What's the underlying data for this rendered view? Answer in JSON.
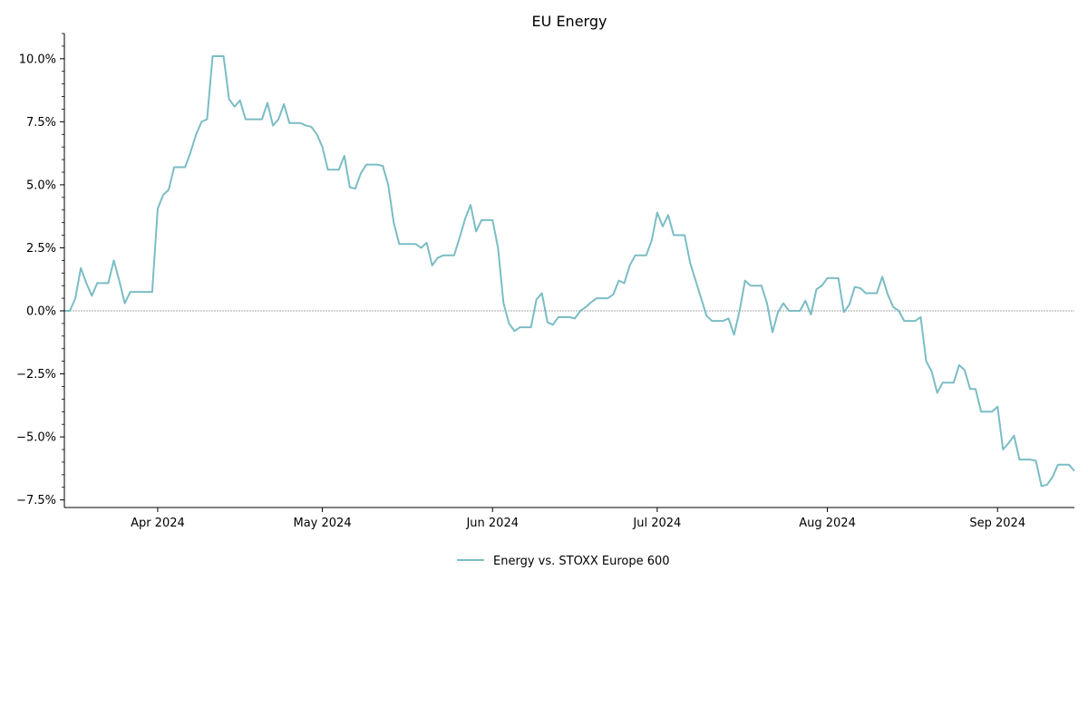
{
  "chart_data": {
    "type": "line",
    "title": "EU Energy",
    "xlabel": "",
    "ylabel": "",
    "x_range": [
      "2024-03-15",
      "2024-09-13"
    ],
    "ylim": [
      -7.8,
      11.0
    ],
    "y_ticks": [
      -7.5,
      -5.0,
      -2.5,
      0.0,
      2.5,
      5.0,
      7.5,
      10.0
    ],
    "y_tick_labels": [
      "−7.5%",
      "−5.0%",
      "−2.5%",
      "0.0%",
      "2.5%",
      "5.0%",
      "7.5%",
      "10.0%"
    ],
    "x_ticks": [
      "2024-04-01",
      "2024-05-01",
      "2024-06-01",
      "2024-07-01",
      "2024-08-01",
      "2024-09-01"
    ],
    "x_tick_labels": [
      "Apr 2024",
      "May 2024",
      "Jun 2024",
      "Jul 2024",
      "Aug 2024",
      "Sep 2024"
    ],
    "zero_line": true,
    "grid": false,
    "legend_position": "below",
    "series": [
      {
        "name": "Energy vs. STOXX Europe 600",
        "color": "#7bbdc4",
        "points": [
          [
            "2024-03-15",
            0.0
          ],
          [
            "2024-03-16",
            0.0
          ],
          [
            "2024-03-17",
            0.5
          ],
          [
            "2024-03-18",
            1.7
          ],
          [
            "2024-03-19",
            1.1
          ],
          [
            "2024-03-20",
            0.6
          ],
          [
            "2024-03-21",
            1.1
          ],
          [
            "2024-03-22",
            1.1
          ],
          [
            "2024-03-23",
            1.1
          ],
          [
            "2024-03-24",
            2.0
          ],
          [
            "2024-03-25",
            1.2
          ],
          [
            "2024-03-26",
            0.3
          ],
          [
            "2024-03-27",
            0.75
          ],
          [
            "2024-03-28",
            0.75
          ],
          [
            "2024-03-29",
            0.75
          ],
          [
            "2024-03-30",
            0.75
          ],
          [
            "2024-03-31",
            0.75
          ],
          [
            "2024-04-01",
            4.05
          ],
          [
            "2024-04-02",
            4.6
          ],
          [
            "2024-04-03",
            4.8
          ],
          [
            "2024-04-04",
            5.7
          ],
          [
            "2024-04-05",
            5.7
          ],
          [
            "2024-04-06",
            5.7
          ],
          [
            "2024-04-07",
            6.3
          ],
          [
            "2024-04-08",
            7.0
          ],
          [
            "2024-04-09",
            7.5
          ],
          [
            "2024-04-10",
            7.6
          ],
          [
            "2024-04-11",
            10.1
          ],
          [
            "2024-04-12",
            10.1
          ],
          [
            "2024-04-13",
            10.1
          ],
          [
            "2024-04-14",
            8.4
          ],
          [
            "2024-04-15",
            8.1
          ],
          [
            "2024-04-16",
            8.35
          ],
          [
            "2024-04-17",
            7.6
          ],
          [
            "2024-04-18",
            7.6
          ],
          [
            "2024-04-19",
            7.6
          ],
          [
            "2024-04-20",
            7.6
          ],
          [
            "2024-04-21",
            8.25
          ],
          [
            "2024-04-22",
            7.35
          ],
          [
            "2024-04-23",
            7.6
          ],
          [
            "2024-04-24",
            8.2
          ],
          [
            "2024-04-25",
            7.45
          ],
          [
            "2024-04-26",
            7.45
          ],
          [
            "2024-04-27",
            7.45
          ],
          [
            "2024-04-28",
            7.35
          ],
          [
            "2024-04-29",
            7.3
          ],
          [
            "2024-04-30",
            7.0
          ],
          [
            "2024-05-01",
            6.5
          ],
          [
            "2024-05-02",
            5.6
          ],
          [
            "2024-05-03",
            5.6
          ],
          [
            "2024-05-04",
            5.6
          ],
          [
            "2024-05-05",
            6.15
          ],
          [
            "2024-05-06",
            4.9
          ],
          [
            "2024-05-07",
            4.85
          ],
          [
            "2024-05-08",
            5.45
          ],
          [
            "2024-05-09",
            5.8
          ],
          [
            "2024-05-10",
            5.8
          ],
          [
            "2024-05-11",
            5.8
          ],
          [
            "2024-05-12",
            5.75
          ],
          [
            "2024-05-13",
            5.0
          ],
          [
            "2024-05-14",
            3.5
          ],
          [
            "2024-05-15",
            2.65
          ],
          [
            "2024-05-16",
            2.65
          ],
          [
            "2024-05-17",
            2.65
          ],
          [
            "2024-05-18",
            2.65
          ],
          [
            "2024-05-19",
            2.5
          ],
          [
            "2024-05-20",
            2.7
          ],
          [
            "2024-05-21",
            1.8
          ],
          [
            "2024-05-22",
            2.1
          ],
          [
            "2024-05-23",
            2.2
          ],
          [
            "2024-05-24",
            2.2
          ],
          [
            "2024-05-25",
            2.2
          ],
          [
            "2024-05-26",
            2.9
          ],
          [
            "2024-05-27",
            3.65
          ],
          [
            "2024-05-28",
            4.2
          ],
          [
            "2024-05-29",
            3.15
          ],
          [
            "2024-05-30",
            3.6
          ],
          [
            "2024-05-31",
            3.6
          ],
          [
            "2024-06-01",
            3.6
          ],
          [
            "2024-06-02",
            2.5
          ],
          [
            "2024-06-03",
            0.3
          ],
          [
            "2024-06-04",
            -0.5
          ],
          [
            "2024-06-05",
            -0.8
          ],
          [
            "2024-06-06",
            -0.65
          ],
          [
            "2024-06-07",
            -0.65
          ],
          [
            "2024-06-08",
            -0.65
          ],
          [
            "2024-06-09",
            0.45
          ],
          [
            "2024-06-10",
            0.7
          ],
          [
            "2024-06-11",
            -0.45
          ],
          [
            "2024-06-12",
            -0.55
          ],
          [
            "2024-06-13",
            -0.25
          ],
          [
            "2024-06-14",
            -0.25
          ],
          [
            "2024-06-15",
            -0.25
          ],
          [
            "2024-06-16",
            -0.3
          ],
          [
            "2024-06-17",
            0.0
          ],
          [
            "2024-06-18",
            0.15
          ],
          [
            "2024-06-19",
            0.35
          ],
          [
            "2024-06-20",
            0.5
          ],
          [
            "2024-06-21",
            0.5
          ],
          [
            "2024-06-22",
            0.5
          ],
          [
            "2024-06-23",
            0.65
          ],
          [
            "2024-06-24",
            1.2
          ],
          [
            "2024-06-25",
            1.1
          ],
          [
            "2024-06-26",
            1.8
          ],
          [
            "2024-06-27",
            2.2
          ],
          [
            "2024-06-28",
            2.2
          ],
          [
            "2024-06-29",
            2.2
          ],
          [
            "2024-06-30",
            2.8
          ],
          [
            "2024-07-01",
            3.9
          ],
          [
            "2024-07-02",
            3.35
          ],
          [
            "2024-07-03",
            3.8
          ],
          [
            "2024-07-04",
            3.0
          ],
          [
            "2024-07-05",
            3.0
          ],
          [
            "2024-07-06",
            3.0
          ],
          [
            "2024-07-07",
            1.9
          ],
          [
            "2024-07-08",
            1.2
          ],
          [
            "2024-07-09",
            0.5
          ],
          [
            "2024-07-10",
            -0.2
          ],
          [
            "2024-07-11",
            -0.4
          ],
          [
            "2024-07-12",
            -0.4
          ],
          [
            "2024-07-13",
            -0.4
          ],
          [
            "2024-07-14",
            -0.3
          ],
          [
            "2024-07-15",
            -0.95
          ],
          [
            "2024-07-16",
            0.0
          ],
          [
            "2024-07-17",
            1.2
          ],
          [
            "2024-07-18",
            1.0
          ],
          [
            "2024-07-19",
            1.0
          ],
          [
            "2024-07-20",
            1.0
          ],
          [
            "2024-07-21",
            0.3
          ],
          [
            "2024-07-22",
            -0.85
          ],
          [
            "2024-07-23",
            -0.05
          ],
          [
            "2024-07-24",
            0.3
          ],
          [
            "2024-07-25",
            0.0
          ],
          [
            "2024-07-26",
            0.0
          ],
          [
            "2024-07-27",
            0.0
          ],
          [
            "2024-07-28",
            0.4
          ],
          [
            "2024-07-29",
            -0.15
          ],
          [
            "2024-07-30",
            0.85
          ],
          [
            "2024-07-31",
            1.0
          ],
          [
            "2024-08-01",
            1.3
          ],
          [
            "2024-08-02",
            1.3
          ],
          [
            "2024-08-03",
            1.3
          ],
          [
            "2024-08-04",
            -0.05
          ],
          [
            "2024-08-05",
            0.25
          ],
          [
            "2024-08-06",
            0.95
          ],
          [
            "2024-08-07",
            0.9
          ],
          [
            "2024-08-08",
            0.7
          ],
          [
            "2024-08-09",
            0.7
          ],
          [
            "2024-08-10",
            0.7
          ],
          [
            "2024-08-11",
            1.35
          ],
          [
            "2024-08-12",
            0.65
          ],
          [
            "2024-08-13",
            0.15
          ],
          [
            "2024-08-14",
            0.0
          ],
          [
            "2024-08-15",
            -0.4
          ],
          [
            "2024-08-16",
            -0.4
          ],
          [
            "2024-08-17",
            -0.4
          ],
          [
            "2024-08-18",
            -0.25
          ],
          [
            "2024-08-19",
            -2.0
          ],
          [
            "2024-08-20",
            -2.4
          ],
          [
            "2024-08-21",
            -3.25
          ],
          [
            "2024-08-22",
            -2.85
          ],
          [
            "2024-08-23",
            -2.85
          ],
          [
            "2024-08-24",
            -2.85
          ],
          [
            "2024-08-25",
            -2.15
          ],
          [
            "2024-08-26",
            -2.35
          ],
          [
            "2024-08-27",
            -3.1
          ],
          [
            "2024-08-28",
            -3.1
          ],
          [
            "2024-08-29",
            -4.0
          ],
          [
            "2024-08-30",
            -4.0
          ],
          [
            "2024-08-31",
            -4.0
          ],
          [
            "2024-09-01",
            -3.8
          ],
          [
            "2024-09-02",
            -5.5
          ],
          [
            "2024-09-03",
            -5.25
          ],
          [
            "2024-09-04",
            -4.95
          ],
          [
            "2024-09-05",
            -5.9
          ],
          [
            "2024-09-06",
            -5.9
          ],
          [
            "2024-09-07",
            -5.9
          ],
          [
            "2024-09-08",
            -5.95
          ],
          [
            "2024-09-09",
            -6.95
          ],
          [
            "2024-09-10",
            -6.9
          ],
          [
            "2024-09-11",
            -6.6
          ],
          [
            "2024-09-12",
            -6.1
          ],
          [
            "2024-09-13",
            -6.1
          ],
          [
            "2024-09-14",
            -6.1
          ],
          [
            "2024-09-15",
            -6.35
          ]
        ]
      }
    ]
  }
}
